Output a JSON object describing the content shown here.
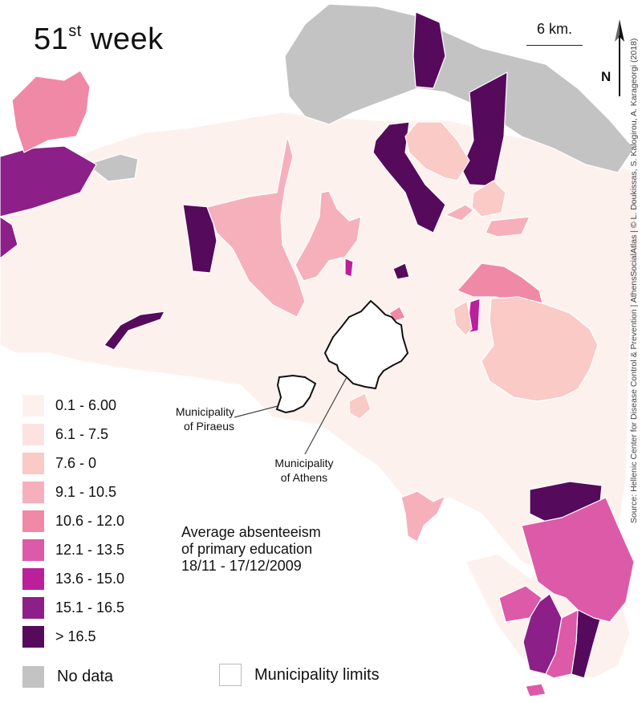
{
  "title": {
    "number": "51",
    "suffix": "st",
    "word": "week"
  },
  "scale_label": "6 km.",
  "north_label": "N",
  "source": "Source: Hellenic Center for Disease Control & Prevention | AthensSocialAtlas | © L. Doukissas, S. Kalogirou, A. Karageorgi (2018)",
  "caption": [
    "Average absenteeism",
    "of primary education",
    "18/11 - 17/12/2009"
  ],
  "labels": {
    "piraeus": [
      "Municipality",
      "of Piraeus"
    ],
    "athens": [
      "Municipality",
      "of Athens"
    ]
  },
  "legend": [
    {
      "label": "0.1 - 6.00",
      "color": "#fdf1ee"
    },
    {
      "label": "6.1 - 7.5",
      "color": "#fce3e0"
    },
    {
      "label": "7.6 - 0",
      "color": "#f9cac6"
    },
    {
      "label": "9.1 - 10.5",
      "color": "#f6b0bc"
    },
    {
      "label": "10.6 - 12.0",
      "color": "#f089a6"
    },
    {
      "label": "12.1 - 13.5",
      "color": "#dd5aa8"
    },
    {
      "label": "13.6 - 15.0",
      "color": "#bb1f9a"
    },
    {
      "label": "15.1 - 16.5",
      "color": "#8c1f88"
    },
    {
      "label": "> 16.5",
      "color": "#560a5c"
    }
  ],
  "no_data": {
    "label": "No data",
    "color": "#c3c3c3"
  },
  "municipality_limits": {
    "label": "Municipality limits"
  }
}
